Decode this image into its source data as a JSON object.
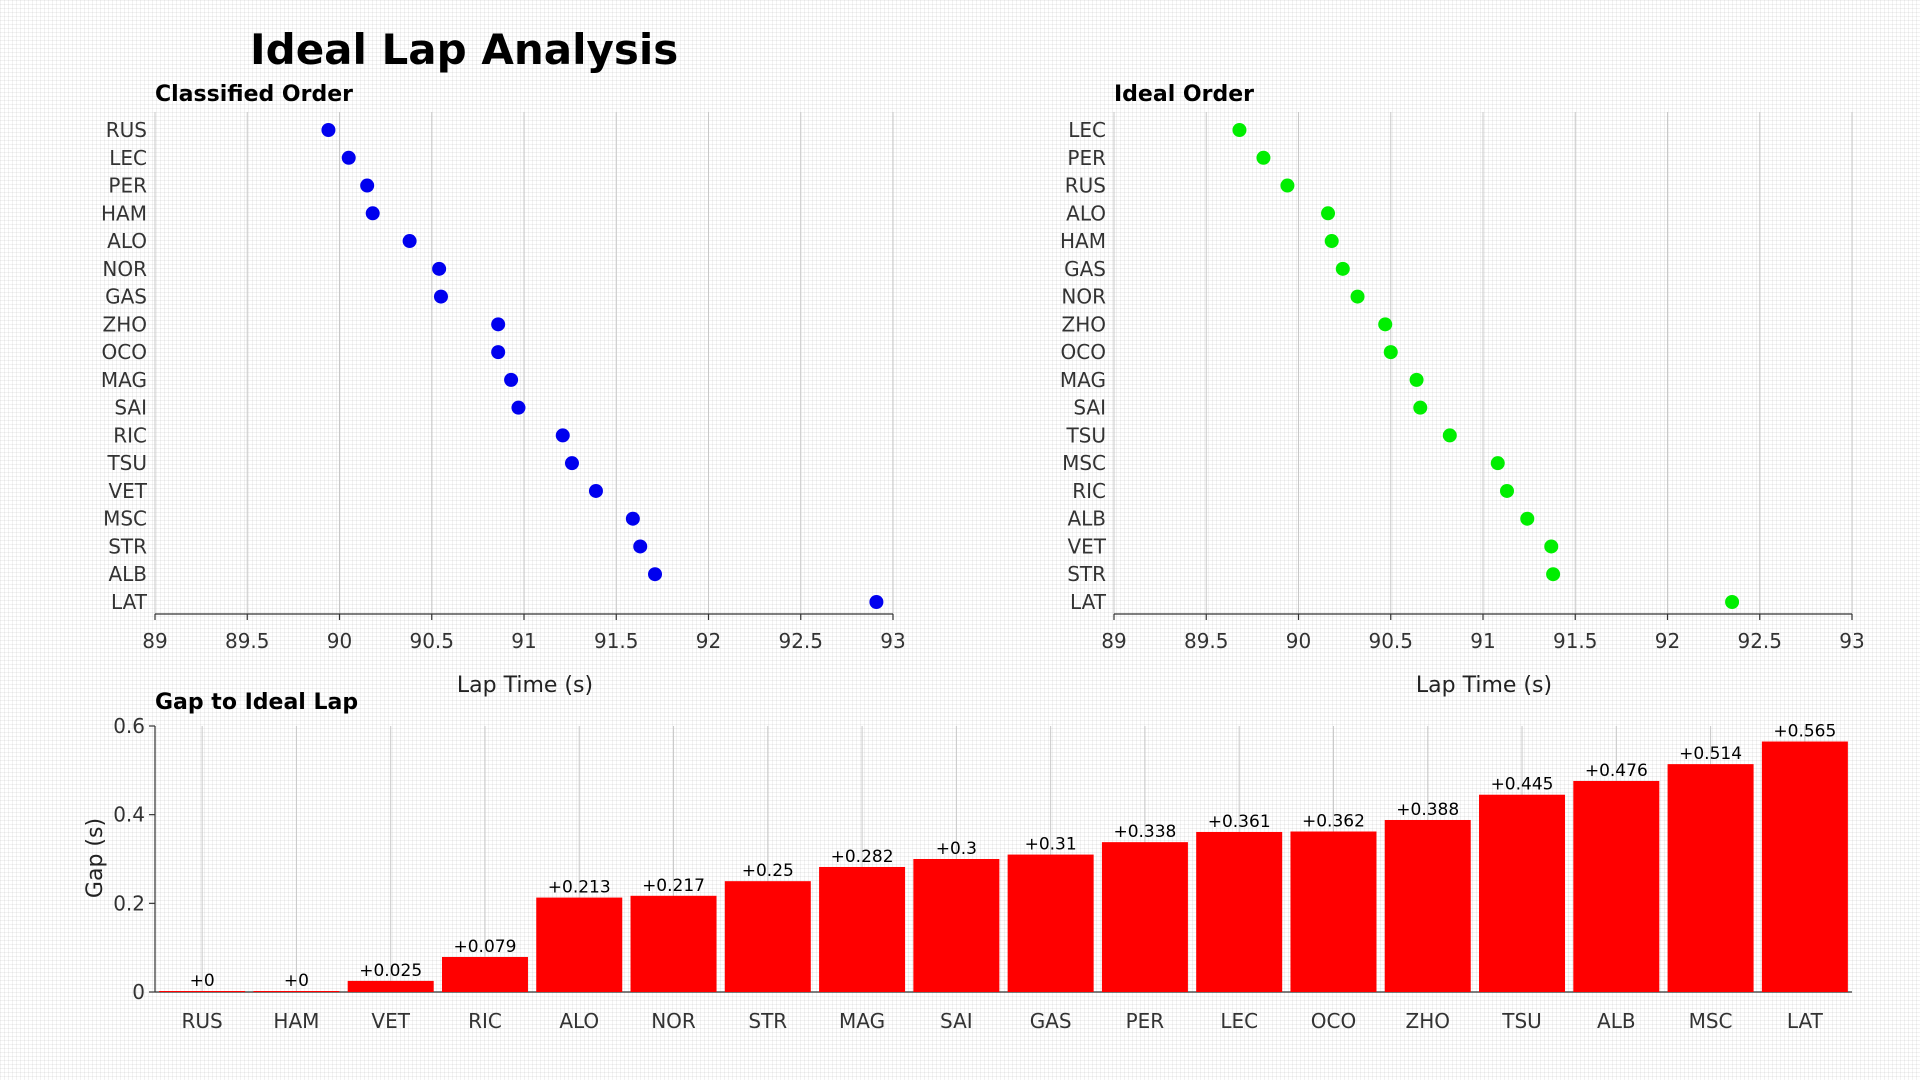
{
  "page_title": "Ideal Lap Analysis",
  "chart_data": [
    {
      "type": "scatter",
      "title": "Classified Order",
      "xlabel": "Lap Time (s)",
      "ylabel": "",
      "xlim": [
        89,
        93
      ],
      "xticks": [
        "89",
        "89.5",
        "90",
        "90.5",
        "91",
        "91.5",
        "92",
        "92.5",
        "93"
      ],
      "xtick_values": [
        89,
        89.5,
        90,
        90.5,
        91,
        91.5,
        92,
        92.5,
        93
      ],
      "color": "#0000ee",
      "categories": [
        "RUS",
        "LEC",
        "PER",
        "HAM",
        "ALO",
        "NOR",
        "GAS",
        "ZHO",
        "OCO",
        "MAG",
        "SAI",
        "RIC",
        "TSU",
        "VET",
        "MSC",
        "STR",
        "ALB",
        "LAT"
      ],
      "values": [
        89.94,
        90.05,
        90.15,
        90.18,
        90.38,
        90.54,
        90.55,
        90.86,
        90.86,
        90.93,
        90.97,
        91.21,
        91.26,
        91.39,
        91.59,
        91.63,
        91.71,
        92.91
      ]
    },
    {
      "type": "scatter",
      "title": "Ideal Order",
      "xlabel": "Lap Time (s)",
      "ylabel": "",
      "xlim": [
        89,
        93
      ],
      "xticks": [
        "89",
        "89.5",
        "90",
        "90.5",
        "91",
        "91.5",
        "92",
        "92.5",
        "93"
      ],
      "xtick_values": [
        89,
        89.5,
        90,
        90.5,
        91,
        91.5,
        92,
        92.5,
        93
      ],
      "color": "#00ee00",
      "categories": [
        "LEC",
        "PER",
        "RUS",
        "ALO",
        "HAM",
        "GAS",
        "NOR",
        "ZHO",
        "OCO",
        "MAG",
        "SAI",
        "TSU",
        "MSC",
        "RIC",
        "ALB",
        "VET",
        "STR",
        "LAT"
      ],
      "values": [
        89.68,
        89.81,
        89.94,
        90.16,
        90.18,
        90.24,
        90.32,
        90.47,
        90.5,
        90.64,
        90.66,
        90.82,
        91.08,
        91.13,
        91.24,
        91.37,
        91.38,
        92.35
      ]
    },
    {
      "type": "bar",
      "title": "Gap to Ideal Lap",
      "xlabel": "",
      "ylabel": "Gap (s)",
      "ylim": [
        0,
        0.6
      ],
      "yticks": [
        "0",
        "0.2",
        "0.4",
        "0.6"
      ],
      "ytick_values": [
        0,
        0.2,
        0.4,
        0.6
      ],
      "color": "#ff0000",
      "categories": [
        "RUS",
        "HAM",
        "VET",
        "RIC",
        "ALO",
        "NOR",
        "STR",
        "MAG",
        "SAI",
        "GAS",
        "PER",
        "LEC",
        "OCO",
        "ZHO",
        "TSU",
        "ALB",
        "MSC",
        "LAT"
      ],
      "values": [
        0,
        0,
        0.025,
        0.079,
        0.213,
        0.217,
        0.25,
        0.282,
        0.3,
        0.31,
        0.338,
        0.361,
        0.362,
        0.388,
        0.445,
        0.476,
        0.514,
        0.565
      ],
      "labels": [
        "+0",
        "+0",
        "+0.025",
        "+0.079",
        "+0.213",
        "+0.217",
        "+0.25",
        "+0.282",
        "+0.3",
        "+0.31",
        "+0.338",
        "+0.361",
        "+0.362",
        "+0.388",
        "+0.445",
        "+0.476",
        "+0.514",
        "+0.565"
      ]
    }
  ]
}
